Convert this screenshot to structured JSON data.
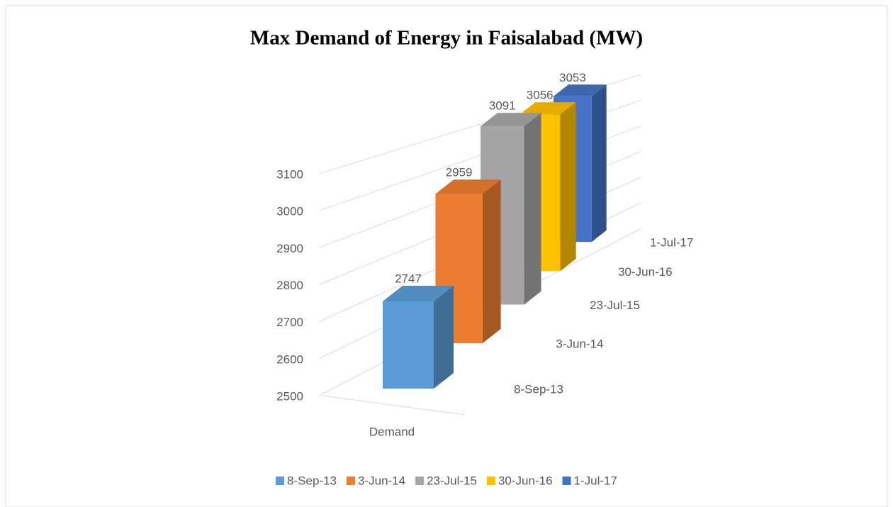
{
  "chart_data": {
    "type": "bar3d",
    "title": "Max Demand of Energy  in Faisalabad (MW)",
    "categories": [
      "Demand"
    ],
    "series": [
      {
        "name": "8-Sep-13",
        "color": "#5b9bd5",
        "values": [
          2747
        ]
      },
      {
        "name": "3-Jun-14",
        "color": "#ed7d31",
        "values": [
          2959
        ]
      },
      {
        "name": "23-Jul-15",
        "color": "#a5a5a5",
        "values": [
          3091
        ]
      },
      {
        "name": "30-Jun-16",
        "color": "#ffc000",
        "values": [
          3056
        ]
      },
      {
        "name": "1-Jul-17",
        "color": "#4472c4",
        "values": [
          3053
        ]
      }
    ],
    "ylim": [
      2500,
      3100
    ],
    "yticks": [
      2500,
      2600,
      2700,
      2800,
      2900,
      3000,
      3100
    ],
    "grid": true,
    "legend": "bottom"
  }
}
